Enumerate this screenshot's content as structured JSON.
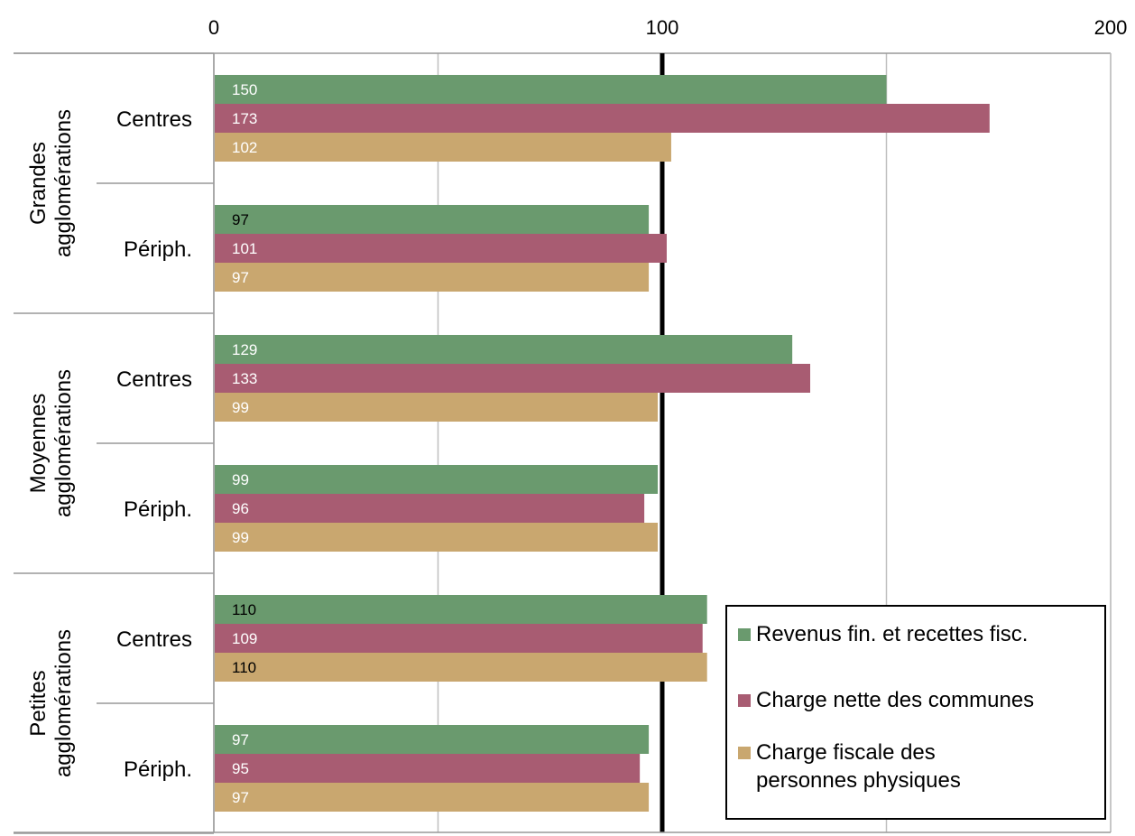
{
  "chart_data": {
    "type": "bar",
    "orientation": "horizontal",
    "xlim": [
      0,
      200
    ],
    "xticks": [
      "0",
      "100",
      "200"
    ],
    "reference_line": 100,
    "legend_position": "bottom-right",
    "grid": true,
    "groups": [
      {
        "label_lines": [
          "Grandes",
          "agglomérations"
        ],
        "categories": [
          "Centres",
          "Périph."
        ]
      },
      {
        "label_lines": [
          "Moyennes",
          "agglomérations"
        ],
        "categories": [
          "Centres",
          "Périph."
        ]
      },
      {
        "label_lines": [
          "Petites",
          "agglomérations"
        ],
        "categories": [
          "Centres",
          "Périph."
        ]
      }
    ],
    "series": [
      {
        "name": "Revenus fin. et recettes fisc.",
        "color": "#6a9a6e",
        "label_colors": [
          "#ffffff",
          "#000000",
          "#ffffff",
          "#ffffff",
          "#000000",
          "#ffffff"
        ],
        "values": [
          150,
          97,
          129,
          99,
          110,
          97
        ]
      },
      {
        "name": "Charge nette des communes",
        "color": "#a85c72",
        "label_colors": [
          "#ffffff",
          "#ffffff",
          "#ffffff",
          "#ffffff",
          "#ffffff",
          "#ffffff"
        ],
        "values": [
          173,
          101,
          133,
          96,
          109,
          95
        ]
      },
      {
        "name_lines": [
          "Charge fiscale des",
          "personnes physiques"
        ],
        "color": "#c9a76f",
        "label_colors": [
          "#ffffff",
          "#ffffff",
          "#ffffff",
          "#ffffff",
          "#000000",
          "#ffffff"
        ],
        "values": [
          102,
          97,
          99,
          99,
          110,
          97
        ]
      }
    ]
  }
}
